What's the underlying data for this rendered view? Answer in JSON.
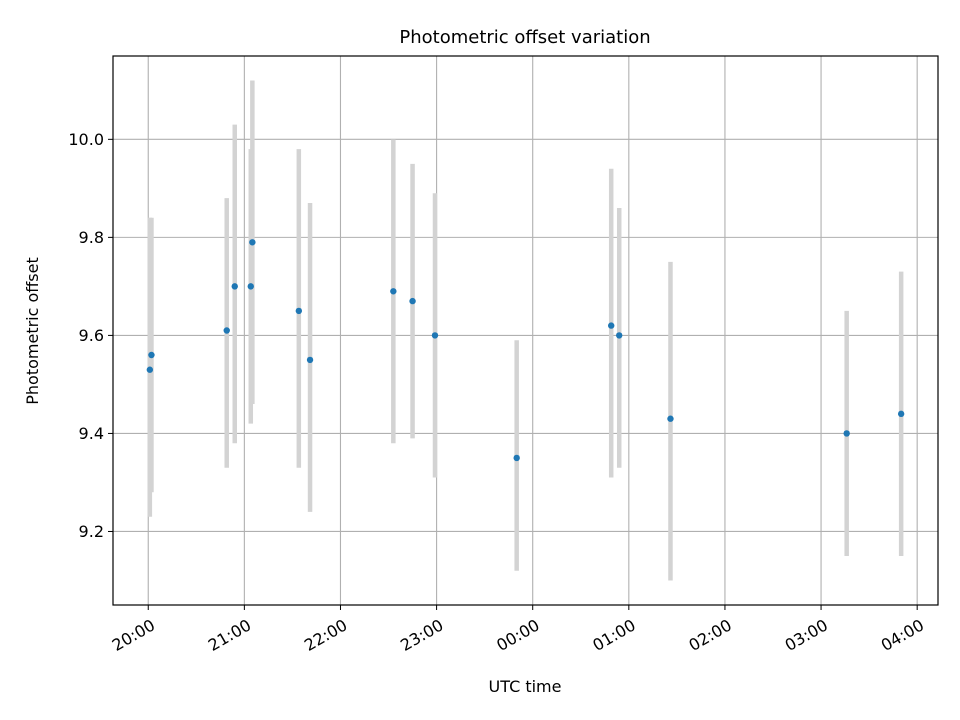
{
  "chart_data": {
    "type": "scatter",
    "title": "Photometric offset variation",
    "xlabel": "UTC time",
    "ylabel": "Photometric offset",
    "grid": true,
    "x_tick_labels": [
      "20:00",
      "21:00",
      "22:00",
      "23:00",
      "00:00",
      "01:00",
      "02:00",
      "03:00",
      "04:00"
    ],
    "y_ticks": [
      9.2,
      9.4,
      9.6,
      9.8,
      10.0
    ],
    "y_tick_labels": [
      "9.2",
      "9.4",
      "9.6",
      "9.8",
      "10.0"
    ],
    "xlim": [
      "19:38",
      "04:13"
    ],
    "ylim": [
      9.05,
      10.17
    ],
    "colors": {
      "point": "#1f77b4",
      "errorbar": "#d3d3d3",
      "grid": "#b0b0b0"
    },
    "series": [
      {
        "points": [
          {
            "x": "20:01",
            "y": 9.53,
            "yerr_low": 9.23,
            "yerr_high": 9.84
          },
          {
            "x": "20:02",
            "y": 9.56,
            "yerr_low": 9.28,
            "yerr_high": 9.84
          },
          {
            "x": "20:49",
            "y": 9.61,
            "yerr_low": 9.33,
            "yerr_high": 9.88
          },
          {
            "x": "20:54",
            "y": 9.7,
            "yerr_low": 9.38,
            "yerr_high": 10.03
          },
          {
            "x": "21:04",
            "y": 9.7,
            "yerr_low": 9.42,
            "yerr_high": 9.98
          },
          {
            "x": "21:05",
            "y": 9.79,
            "yerr_low": 9.46,
            "yerr_high": 10.12
          },
          {
            "x": "21:34",
            "y": 9.65,
            "yerr_low": 9.33,
            "yerr_high": 9.98
          },
          {
            "x": "21:41",
            "y": 9.55,
            "yerr_low": 9.24,
            "yerr_high": 9.87
          },
          {
            "x": "22:33",
            "y": 9.69,
            "yerr_low": 9.38,
            "yerr_high": 10.0
          },
          {
            "x": "22:45",
            "y": 9.67,
            "yerr_low": 9.39,
            "yerr_high": 9.95
          },
          {
            "x": "22:59",
            "y": 9.6,
            "yerr_low": 9.31,
            "yerr_high": 9.89
          },
          {
            "x": "23:50",
            "y": 9.35,
            "yerr_low": 9.12,
            "yerr_high": 9.59
          },
          {
            "x": "00:49",
            "y": 9.62,
            "yerr_low": 9.31,
            "yerr_high": 9.94
          },
          {
            "x": "00:54",
            "y": 9.6,
            "yerr_low": 9.33,
            "yerr_high": 9.86
          },
          {
            "x": "01:26",
            "y": 9.43,
            "yerr_low": 9.1,
            "yerr_high": 9.75
          },
          {
            "x": "03:16",
            "y": 9.4,
            "yerr_low": 9.15,
            "yerr_high": 9.65
          },
          {
            "x": "03:50",
            "y": 9.44,
            "yerr_low": 9.15,
            "yerr_high": 9.73
          }
        ]
      }
    ]
  }
}
